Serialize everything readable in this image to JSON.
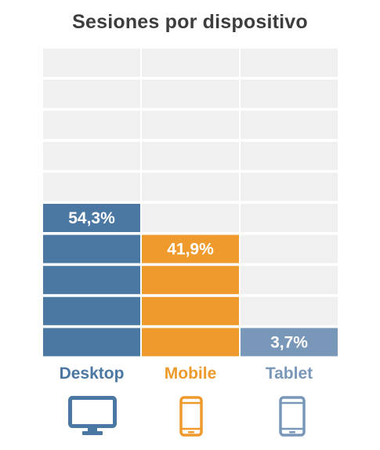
{
  "chart_data": {
    "type": "waffle-column",
    "title": "Sesiones por dispositivo",
    "categories": [
      "Desktop",
      "Mobile",
      "Tablet"
    ],
    "values": [
      54.3,
      41.9,
      3.7
    ],
    "value_labels": [
      "54,3%",
      "41,9%",
      "3,7%"
    ],
    "cells_per_column": 10,
    "colors": {
      "Desktop": "#4b78a3",
      "Mobile": "#ef9a2c",
      "Tablet": "#7997b8",
      "empty": "#f0f0f0",
      "title": "#3d3d3d"
    },
    "icons": [
      "desktop-monitor-icon",
      "smartphone-icon",
      "tablet-icon"
    ]
  }
}
